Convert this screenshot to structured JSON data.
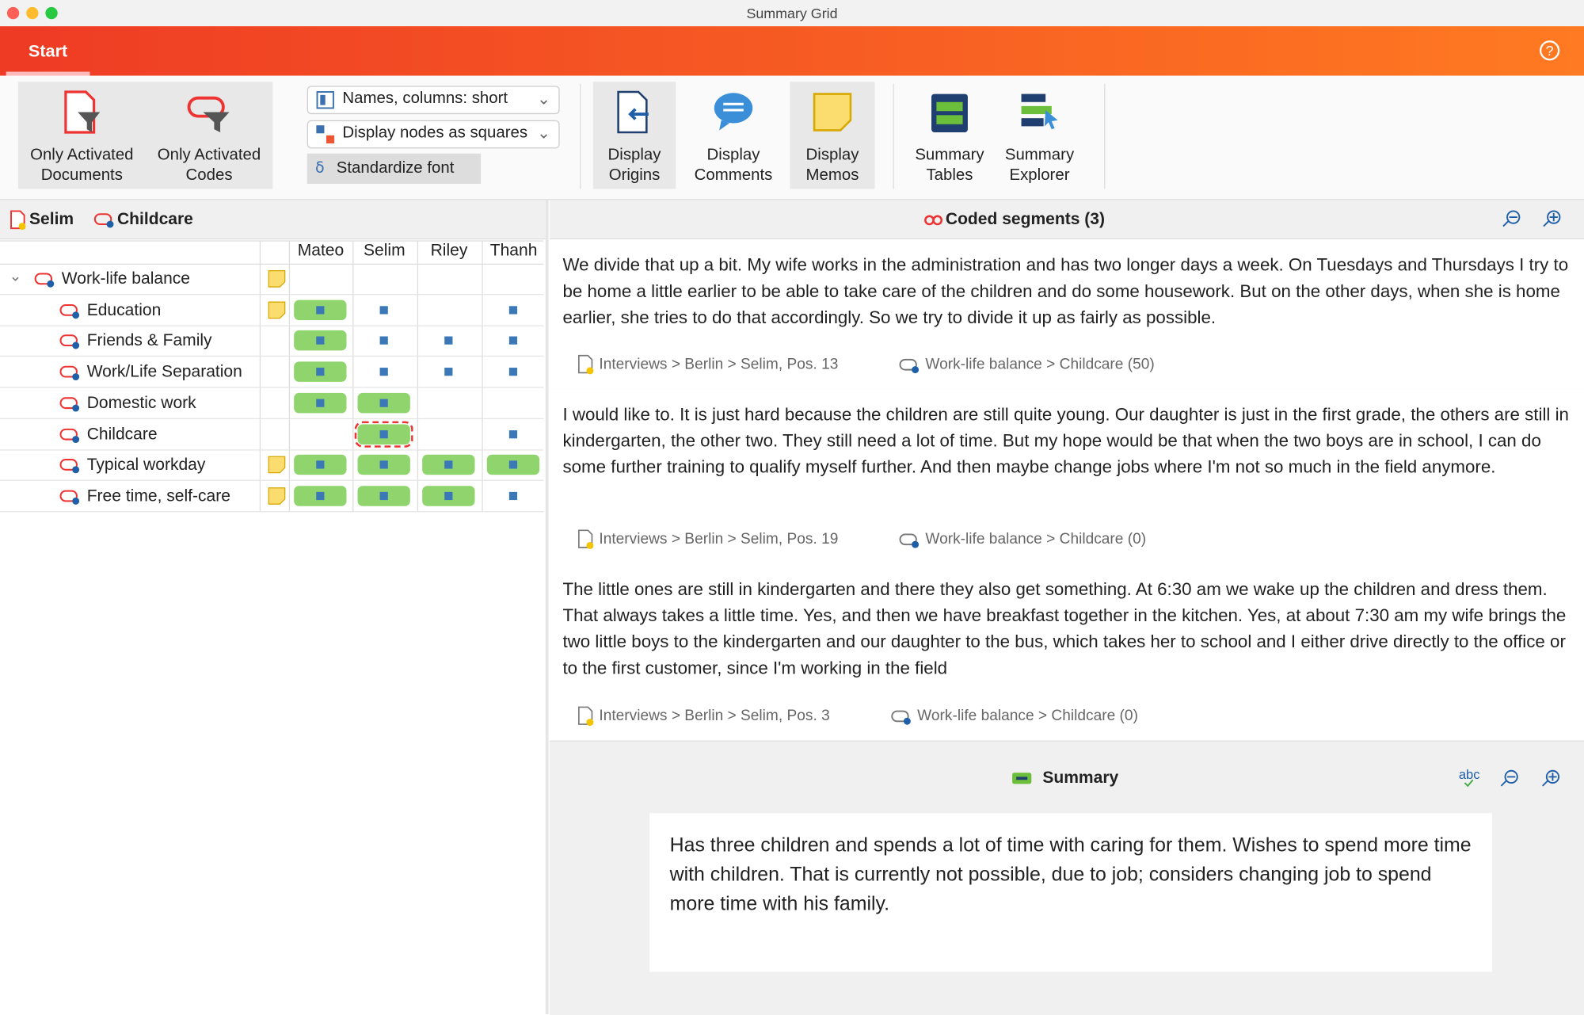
{
  "window": {
    "title": "Summary Grid"
  },
  "ribbon": {
    "tab": "Start",
    "filters": [
      [
        "Only Activated",
        "Documents"
      ],
      [
        "Only Activated",
        "Codes"
      ]
    ],
    "dropdowns": [
      "Names, columns: short",
      "Display nodes as squares"
    ],
    "font_button": "Standardize font",
    "display": [
      [
        "Display",
        "Origins"
      ],
      [
        "Display",
        "Comments"
      ],
      [
        "Display",
        "Memos"
      ]
    ],
    "summary": [
      [
        "Summary",
        "Tables"
      ],
      [
        "Summary",
        "Explorer"
      ]
    ]
  },
  "grid": {
    "document": "Selim",
    "code": "Childcare",
    "columns": [
      "Mateo",
      "Selim",
      "Riley",
      "Thanh"
    ],
    "rows": [
      "Work-life balance",
      "Education",
      "Friends & Family",
      "Work/Life Separation",
      "Domestic work",
      "Childcare",
      "Typical workday",
      "Free time, self-care"
    ]
  },
  "segments": {
    "title": "Coded segments (3)",
    "items": [
      {
        "text": "We divide that up a bit. My wife works in the administration and has two longer days a week. On Tuesdays and Thursdays I try to be home a little earlier to be able to take care of the children and do some housework. But on the other days, when she is home earlier, she tries to do that accordingly. So we try to divide it up as fairly as possible.",
        "source": "Interviews > Berlin > Selim, Pos. 13",
        "code": "Work-life balance > Childcare (50)"
      },
      {
        "text": "I would like to. It is just hard because the children are still quite young. Our daughter is just in the first grade, the others are still in kindergarten, the other two. They still need a lot of time. But my hope would be that when the two boys are in school, I can do some further training to qualify myself further. And then maybe change jobs where I'm not so much in the field anymore.",
        "source": "Interviews > Berlin > Selim, Pos. 19",
        "code": "Work-life balance > Childcare (0)"
      },
      {
        "text": "The little ones are still in kindergarten and there they also get something. At 6:30 am we wake up the children and dress them. That always takes a little time. Yes, and then we have breakfast together in the kitchen. Yes, at about 7:30 am my wife brings the two little boys to the kindergarten and our daughter to the bus, which takes her to school and I either drive directly to the office or to the first customer, since I'm working in the field",
        "source": "Interviews > Berlin > Selim, Pos. 3",
        "code": "Work-life balance > Childcare (0)"
      }
    ]
  },
  "summary": {
    "title": "Summary",
    "text": "Has three children and spends a lot of time with caring for them. Wishes to spend more time with children. That is currently not possible, due to job; considers changing job to spend more time with his family."
  }
}
